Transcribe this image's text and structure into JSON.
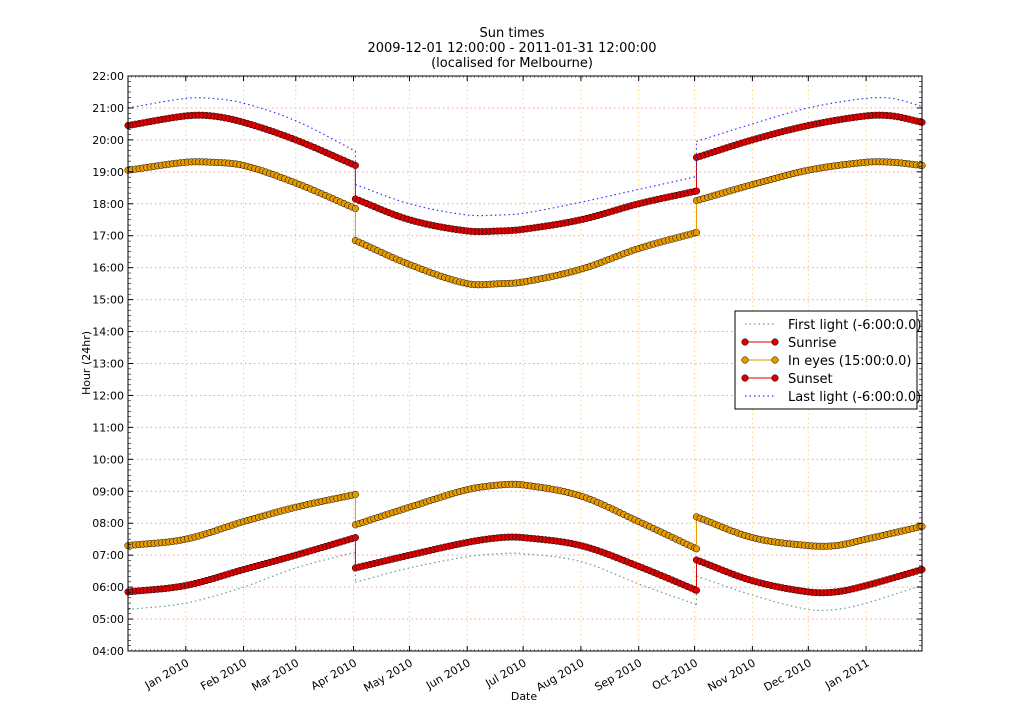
{
  "chart_data": {
    "type": "line",
    "title": "Sun times",
    "subtitle": "2009-12-01 12:00:00 - 2011-01-31 12:00:00",
    "subtitle2": "(localised for Melbourne)",
    "xlabel": "Date",
    "ylabel": "Hour (24hr)",
    "xlim": [
      "2009-12-01",
      "2011-01-31"
    ],
    "ylim": [
      4,
      22
    ],
    "grid": true,
    "legend_position": "center right",
    "yticks": [
      "04:00",
      "05:00",
      "06:00",
      "07:00",
      "08:00",
      "09:00",
      "10:00",
      "11:00",
      "12:00",
      "13:00",
      "14:00",
      "15:00",
      "16:00",
      "17:00",
      "18:00",
      "19:00",
      "20:00",
      "21:00",
      "22:00"
    ],
    "xticks": [
      {
        "label": "Jan 2010",
        "day": 31
      },
      {
        "label": "Feb 2010",
        "day": 62
      },
      {
        "label": "Mar 2010",
        "day": 90
      },
      {
        "label": "Apr 2010",
        "day": 121
      },
      {
        "label": "May 2010",
        "day": 151
      },
      {
        "label": "Jun 2010",
        "day": 182
      },
      {
        "label": "Jul 2010",
        "day": 212
      },
      {
        "label": "Aug 2010",
        "day": 243
      },
      {
        "label": "Sep 2010",
        "day": 274
      },
      {
        "label": "Oct 2010",
        "day": 304
      },
      {
        "label": "Nov 2010",
        "day": 335
      },
      {
        "label": "Dec 2010",
        "day": 365
      },
      {
        "label": "Jan 2011",
        "day": 396
      }
    ],
    "total_days": 426,
    "x_day_index_note": "day 0 = 2009-12-01",
    "series": [
      {
        "name": "First light (-6:00:0.0)",
        "style": "dotted",
        "color": "#5f9ea0",
        "marker": "none",
        "segments": [
          [
            [
              0,
              5.3
            ],
            [
              31,
              5.5
            ],
            [
              62,
              6.0
            ],
            [
              90,
              6.6
            ],
            [
              122,
              7.1
            ]
          ],
          [
            [
              122,
              6.15
            ],
            [
              151,
              6.6
            ],
            [
              182,
              6.95
            ],
            [
              200,
              7.05
            ],
            [
              212,
              7.05
            ],
            [
              243,
              6.8
            ],
            [
              274,
              6.1
            ],
            [
              305,
              5.45
            ]
          ],
          [
            [
              305,
              6.35
            ],
            [
              335,
              5.75
            ],
            [
              365,
              5.3
            ],
            [
              380,
              5.3
            ],
            [
              396,
              5.5
            ],
            [
              426,
              6.05
            ]
          ]
        ]
      },
      {
        "name": "Sunrise",
        "style": "solid",
        "color": "#dd0000",
        "marker": "circle",
        "segments": [
          [
            [
              0,
              5.85
            ],
            [
              31,
              6.05
            ],
            [
              62,
              6.55
            ],
            [
              90,
              7.0
            ],
            [
              122,
              7.55
            ]
          ],
          [
            [
              122,
              6.6
            ],
            [
              151,
              7.0
            ],
            [
              182,
              7.4
            ],
            [
              200,
              7.55
            ],
            [
              212,
              7.55
            ],
            [
              243,
              7.3
            ],
            [
              274,
              6.65
            ],
            [
              305,
              5.9
            ]
          ],
          [
            [
              305,
              6.85
            ],
            [
              335,
              6.2
            ],
            [
              365,
              5.85
            ],
            [
              380,
              5.85
            ],
            [
              396,
              6.05
            ],
            [
              426,
              6.55
            ]
          ]
        ]
      },
      {
        "name": "In eyes (15:00:0.0)",
        "style": "solid",
        "color": "#e69a00",
        "marker": "circle",
        "segments": [
          [
            [
              0,
              7.3
            ],
            [
              31,
              7.5
            ],
            [
              62,
              8.05
            ],
            [
              90,
              8.5
            ],
            [
              122,
              8.9
            ]
          ],
          [
            [
              122,
              7.95
            ],
            [
              151,
              8.5
            ],
            [
              182,
              9.05
            ],
            [
              200,
              9.2
            ],
            [
              212,
              9.2
            ],
            [
              243,
              8.85
            ],
            [
              274,
              8.05
            ],
            [
              305,
              7.2
            ]
          ],
          [
            [
              305,
              8.2
            ],
            [
              335,
              7.55
            ],
            [
              365,
              7.3
            ],
            [
              380,
              7.3
            ],
            [
              396,
              7.5
            ],
            [
              426,
              7.9
            ]
          ],
          [
            [
              0,
              19.05
            ],
            [
              31,
              19.3
            ],
            [
              45,
              19.3
            ],
            [
              62,
              19.2
            ],
            [
              90,
              18.65
            ],
            [
              122,
              17.85
            ]
          ],
          [
            [
              122,
              16.85
            ],
            [
              151,
              16.1
            ],
            [
              182,
              15.5
            ],
            [
              200,
              15.5
            ],
            [
              212,
              15.55
            ],
            [
              243,
              15.95
            ],
            [
              274,
              16.6
            ],
            [
              305,
              17.1
            ]
          ],
          [
            [
              305,
              18.1
            ],
            [
              335,
              18.6
            ],
            [
              365,
              19.05
            ],
            [
              396,
              19.3
            ],
            [
              410,
              19.3
            ],
            [
              426,
              19.2
            ]
          ]
        ]
      },
      {
        "name": "Sunset",
        "style": "solid",
        "color": "#dd0000",
        "marker": "circle",
        "segments": [
          [
            [
              0,
              20.45
            ],
            [
              31,
              20.75
            ],
            [
              45,
              20.75
            ],
            [
              62,
              20.55
            ],
            [
              90,
              20.0
            ],
            [
              122,
              19.2
            ]
          ],
          [
            [
              122,
              18.15
            ],
            [
              151,
              17.5
            ],
            [
              182,
              17.15
            ],
            [
              200,
              17.15
            ],
            [
              212,
              17.2
            ],
            [
              243,
              17.5
            ],
            [
              274,
              18.0
            ],
            [
              305,
              18.4
            ]
          ],
          [
            [
              305,
              19.45
            ],
            [
              335,
              20.0
            ],
            [
              365,
              20.45
            ],
            [
              396,
              20.75
            ],
            [
              410,
              20.75
            ],
            [
              426,
              20.55
            ]
          ]
        ]
      },
      {
        "name": "Last light (-6:00:0.0)",
        "style": "dotted",
        "color": "#3333ff",
        "marker": "none",
        "segments": [
          [
            [
              0,
              21.0
            ],
            [
              31,
              21.3
            ],
            [
              45,
              21.3
            ],
            [
              62,
              21.15
            ],
            [
              90,
              20.6
            ],
            [
              122,
              19.65
            ]
          ],
          [
            [
              122,
              18.6
            ],
            [
              151,
              18.0
            ],
            [
              182,
              17.65
            ],
            [
              200,
              17.65
            ],
            [
              212,
              17.7
            ],
            [
              243,
              18.05
            ],
            [
              274,
              18.45
            ],
            [
              305,
              18.85
            ]
          ],
          [
            [
              305,
              19.95
            ],
            [
              335,
              20.5
            ],
            [
              365,
              21.0
            ],
            [
              396,
              21.3
            ],
            [
              410,
              21.3
            ],
            [
              426,
              21.05
            ]
          ]
        ]
      }
    ],
    "legend": [
      {
        "label": "First light (-6:00:0.0)",
        "style": "dotted",
        "color": "#5f9ea0",
        "marker": false
      },
      {
        "label": "Sunrise",
        "style": "solid",
        "color": "#dd0000",
        "marker": true
      },
      {
        "label": "In eyes (15:00:0.0)",
        "style": "solid",
        "color": "#e69a00",
        "marker": true
      },
      {
        "label": "Sunset",
        "style": "solid",
        "color": "#dd0000",
        "marker": true
      },
      {
        "label": "Last light (-6:00:0.0)",
        "style": "dotted",
        "color": "#3333ff",
        "marker": false
      }
    ]
  },
  "colors": {
    "hgrid": "#ff9999",
    "vgrid": "#ffd27f",
    "frame": "#000000"
  }
}
